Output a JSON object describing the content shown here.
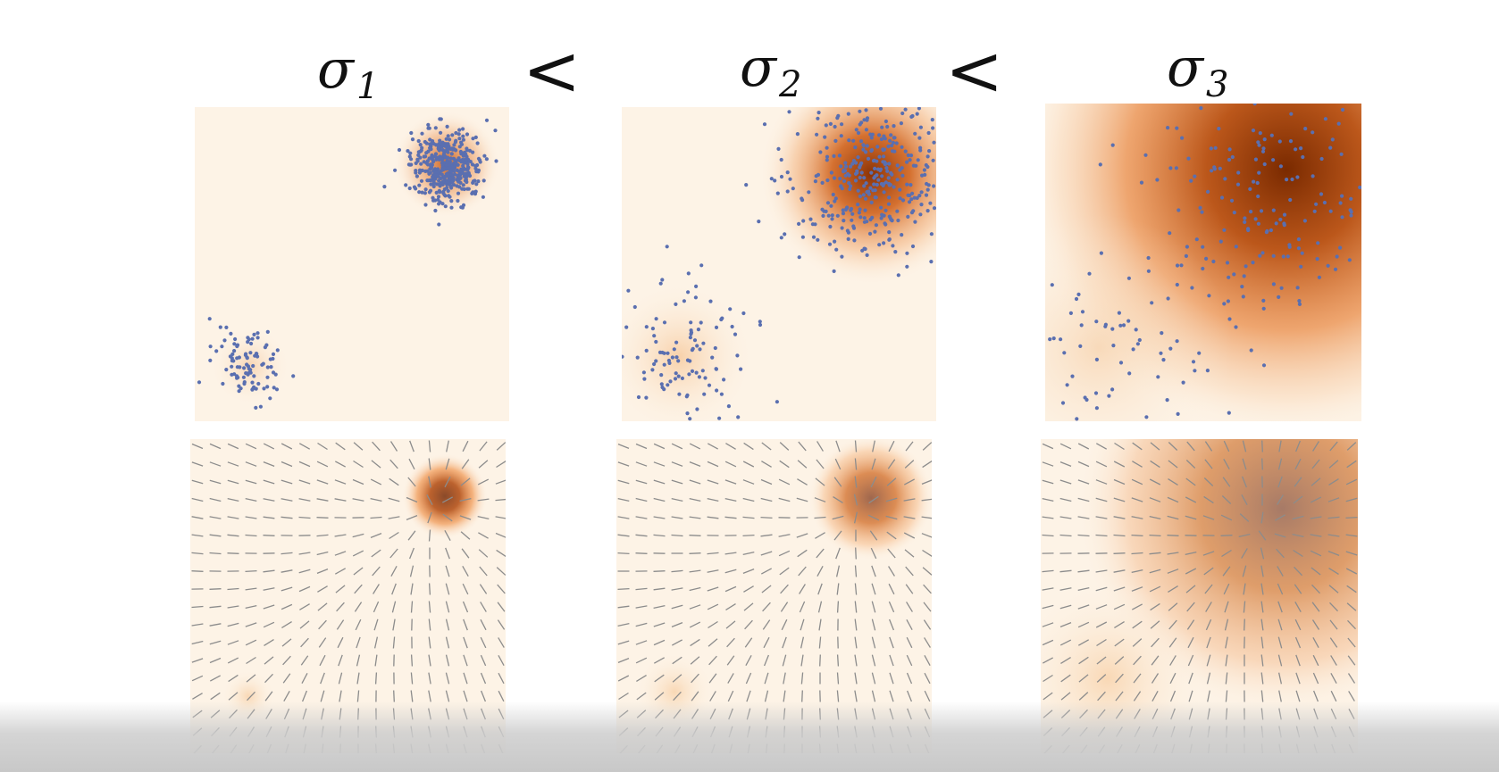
{
  "figure": {
    "labels": [
      {
        "symbol": "σ",
        "subscript": "1"
      },
      {
        "symbol": "σ",
        "subscript": "2"
      },
      {
        "symbol": "σ",
        "subscript": "3"
      }
    ],
    "comparators": [
      "<",
      "<"
    ]
  },
  "colors": {
    "density_low": "#fdf3e6",
    "density_high": "#7a2a00",
    "density_mid": "#e06d1e",
    "samples": "#5a6fb0",
    "arrows": "#8c8c8c",
    "background": "#ffffff"
  },
  "icons": {
    "sample_marker": "dot",
    "score_marker": "arrow-glyph"
  }
}
